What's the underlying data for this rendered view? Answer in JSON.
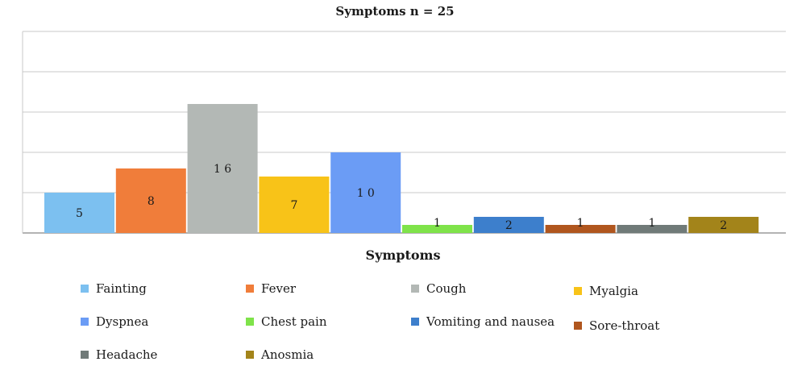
{
  "chart_data": {
    "type": "bar",
    "title": "Symptoms n = 25",
    "xlabel": "Symptoms",
    "ylabel": "",
    "ylim": [
      0,
      25
    ],
    "grid": true,
    "legend_position": "bottom",
    "categories": [
      "Fainting",
      "Fever",
      "Cough",
      "Myalgia",
      "Dyspnea",
      "Chest pain",
      "Vomiting and nausea",
      "Sore-throat",
      "Headache",
      "Anosmia"
    ],
    "values": [
      5,
      8,
      16,
      7,
      10,
      1,
      2,
      1,
      1,
      2
    ],
    "data_labels": [
      "5",
      "8",
      "1 6",
      "7",
      "1 0",
      "1",
      "2",
      "1",
      "1",
      "2"
    ],
    "colors": [
      "#7cc0f0",
      "#f07d3a",
      "#b3b8b5",
      "#f8c318",
      "#6b9cf5",
      "#7fe34a",
      "#3d7fcc",
      "#b0561e",
      "#707a78",
      "#a3841a"
    ]
  }
}
